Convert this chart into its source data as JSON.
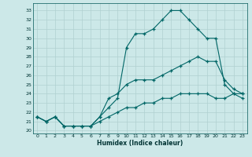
{
  "xlabel": "Humidex (Indice chaleur)",
  "bg_color": "#cce8e8",
  "line_color": "#006666",
  "grid_color": "#b0d0d0",
  "xlim": [
    -0.5,
    23.5
  ],
  "ylim": [
    19.7,
    33.8
  ],
  "yticks": [
    20,
    21,
    22,
    23,
    24,
    25,
    26,
    27,
    28,
    29,
    30,
    31,
    32,
    33
  ],
  "xticks": [
    0,
    1,
    2,
    3,
    4,
    5,
    6,
    7,
    8,
    9,
    10,
    11,
    12,
    13,
    14,
    15,
    16,
    17,
    18,
    19,
    20,
    21,
    22,
    23
  ],
  "series1_x": [
    0,
    1,
    2,
    3,
    4,
    5,
    6,
    7,
    8,
    9,
    10,
    11,
    12,
    13,
    14,
    15,
    16,
    17,
    18,
    19,
    20,
    21,
    22,
    23
  ],
  "series1_y": [
    21.5,
    21.0,
    21.5,
    20.5,
    20.5,
    20.5,
    20.5,
    21.5,
    22.5,
    23.5,
    29.0,
    30.5,
    30.5,
    31.0,
    32.0,
    33.0,
    33.0,
    32.0,
    31.0,
    30.0,
    30.0,
    25.0,
    24.0,
    23.5
  ],
  "series2_x": [
    0,
    1,
    2,
    3,
    4,
    5,
    6,
    7,
    8,
    9,
    10,
    11,
    12,
    13,
    14,
    15,
    16,
    17,
    18,
    19,
    20,
    21,
    22,
    23
  ],
  "series2_y": [
    21.5,
    21.0,
    21.5,
    20.5,
    20.5,
    20.5,
    20.5,
    21.5,
    23.5,
    24.0,
    25.0,
    25.5,
    25.5,
    25.5,
    26.0,
    26.5,
    27.0,
    27.5,
    28.0,
    27.5,
    27.5,
    25.5,
    24.5,
    24.0
  ],
  "series3_x": [
    0,
    1,
    2,
    3,
    4,
    5,
    6,
    7,
    8,
    9,
    10,
    11,
    12,
    13,
    14,
    15,
    16,
    17,
    18,
    19,
    20,
    21,
    22,
    23
  ],
  "series3_y": [
    21.5,
    21.0,
    21.5,
    20.5,
    20.5,
    20.5,
    20.5,
    21.0,
    21.5,
    22.0,
    22.5,
    22.5,
    23.0,
    23.0,
    23.5,
    23.5,
    24.0,
    24.0,
    24.0,
    24.0,
    23.5,
    23.5,
    24.0,
    24.0
  ]
}
